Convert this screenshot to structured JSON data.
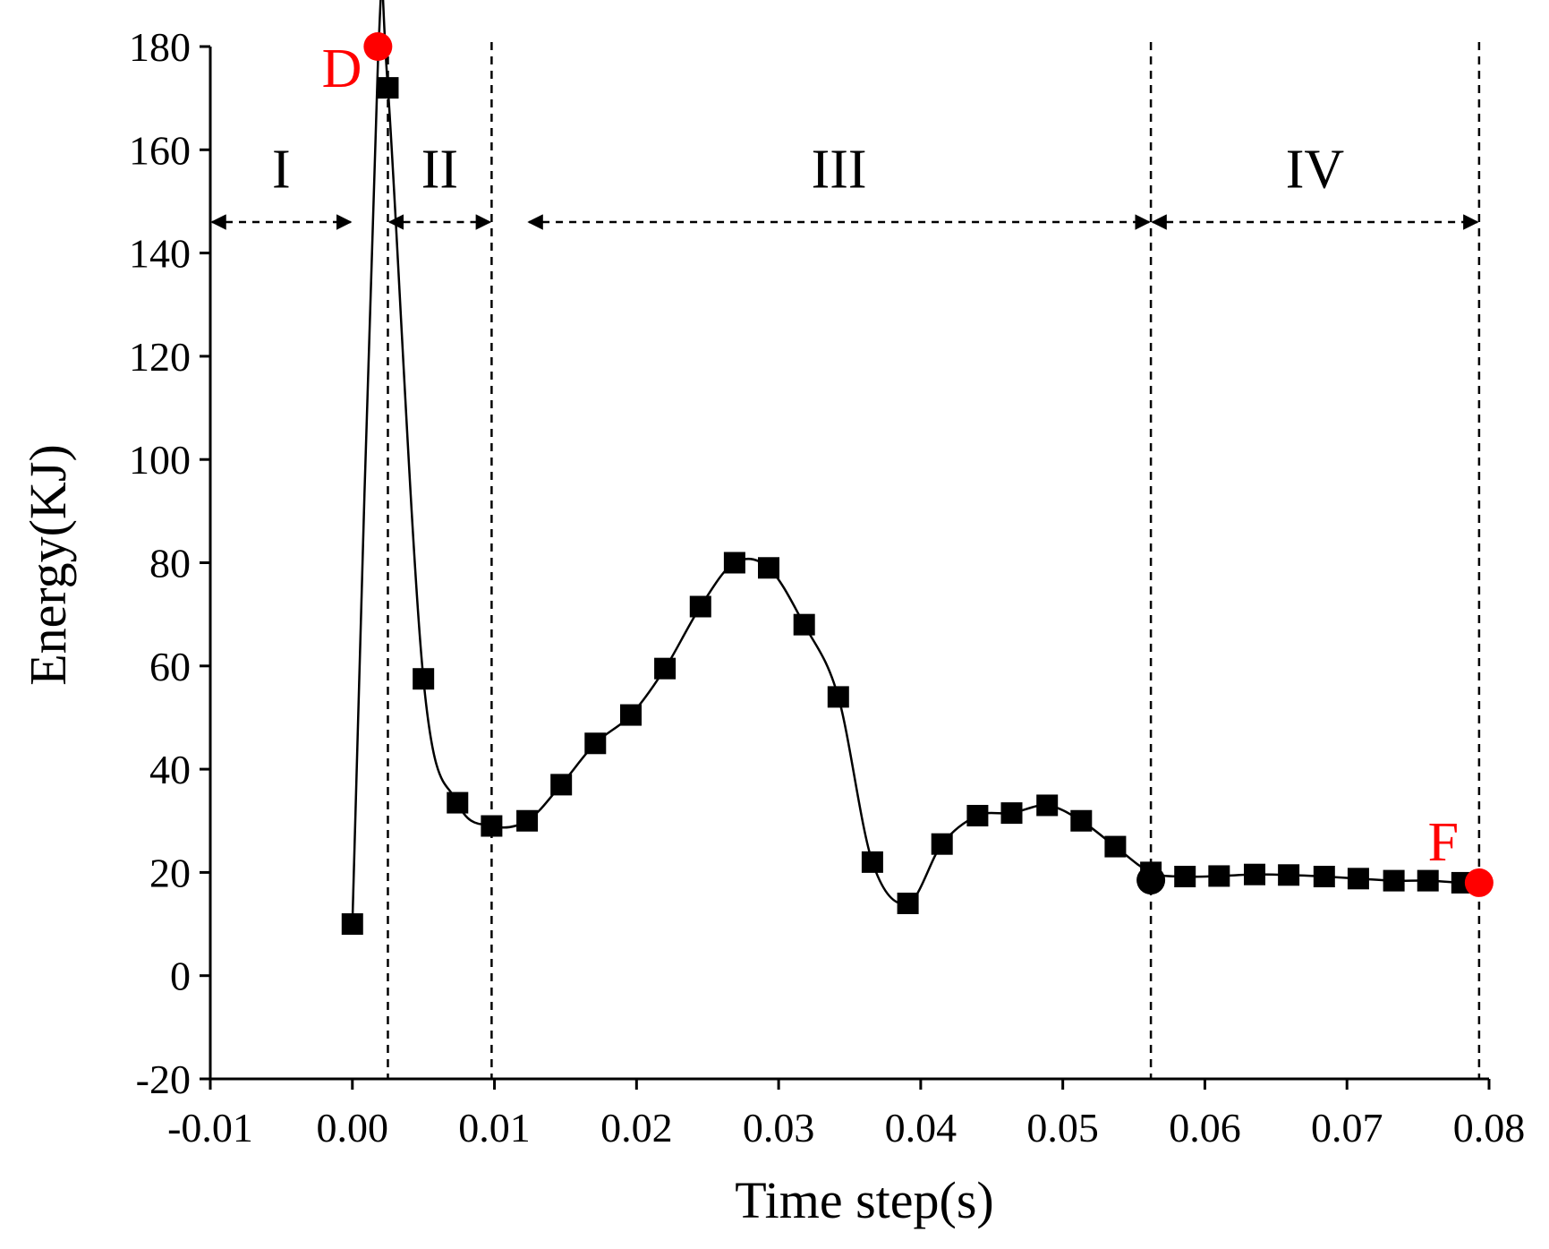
{
  "chart_data": {
    "type": "line",
    "title": "",
    "xlabel": "Time step(s)",
    "ylabel": "Energy(KJ)",
    "xlim": [
      -0.01,
      0.08
    ],
    "ylim": [
      -20,
      180
    ],
    "x_ticks": [
      "-0.01",
      "0.00",
      "0.01",
      "0.02",
      "0.03",
      "0.04",
      "0.05",
      "0.06",
      "0.07",
      "0.08"
    ],
    "y_ticks": [
      "-20",
      "0",
      "20",
      "40",
      "60",
      "80",
      "100",
      "120",
      "140",
      "160",
      "180"
    ],
    "grid": false,
    "legend": "none",
    "colors": {
      "line": "#000000",
      "marker": "#000000",
      "highlight": "#ff0000"
    },
    "series": [
      {
        "marker": "square",
        "x": [
          0.0,
          0.0025,
          0.005,
          0.0074,
          0.0098,
          0.0123,
          0.0147,
          0.0171,
          0.0196,
          0.022,
          0.0245,
          0.0269,
          0.0293,
          0.0318,
          0.0342,
          0.0366,
          0.0391,
          0.0415,
          0.044,
          0.0464,
          0.0489,
          0.0513,
          0.0537,
          0.0562,
          0.0586,
          0.061,
          0.0635,
          0.0659,
          0.0684,
          0.0708,
          0.0733,
          0.0757,
          0.0781
        ],
        "y": [
          10,
          172,
          57.5,
          33.5,
          29,
          30,
          37,
          45,
          50.5,
          59.5,
          71.5,
          80,
          79,
          68,
          54,
          22,
          14,
          25.5,
          31,
          31.5,
          33,
          30,
          25,
          20,
          19.2,
          19.3,
          19.6,
          19.5,
          19.2,
          18.8,
          18.4,
          18.4,
          18.0
        ]
      }
    ],
    "special_points": [
      {
        "label": "D",
        "x": 0.0018,
        "y": 180,
        "color": "#ff0000"
      },
      {
        "label": "",
        "x": 0.0562,
        "y": 18.5,
        "color": "#000000"
      },
      {
        "label": "F",
        "x": 0.0793,
        "y": 18,
        "color": "#ff0000"
      }
    ],
    "boundaries_x": [
      0.0025,
      0.0098,
      0.0562,
      0.0793
    ],
    "regions": [
      {
        "label": "I",
        "x_from": -0.01,
        "x_to": 0.0,
        "label_y": 160
      },
      {
        "label": "II",
        "x_from": 0.0025,
        "x_to": 0.0098,
        "label_y": 160
      },
      {
        "label": "III",
        "x_from": 0.0123,
        "x_to": 0.0562,
        "label_y": 160
      },
      {
        "label": "IV",
        "x_from": 0.0562,
        "x_to": 0.0793,
        "label_y": 160
      }
    ]
  }
}
